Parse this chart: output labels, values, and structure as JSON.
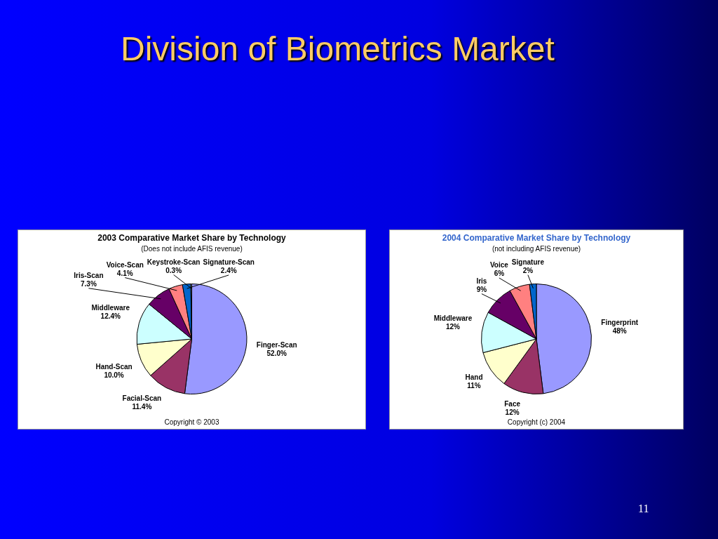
{
  "chart_data": [
    {
      "type": "other",
      "title": "Division of Biometrics Market",
      "annotations": [
        "11"
      ]
    },
    {
      "type": "pie",
      "title": "2003 Comparative Market Share by Technology",
      "subtitle": "(Does not include AFIS revenue)",
      "annotations": [
        "Copyright © 2003"
      ],
      "categories": [
        "Finger-Scan",
        "Facial-Scan",
        "Hand-Scan",
        "Middleware",
        "Iris-Scan",
        "Voice-Scan",
        "Signature-Scan",
        "Keystroke-Scan"
      ],
      "values": [
        52.0,
        11.4,
        10.0,
        12.4,
        7.3,
        4.1,
        2.4,
        0.3
      ],
      "value_labels": [
        "52.0%",
        "11.4%",
        "10.0%",
        "12.4%",
        "7.3%",
        "4.1%",
        "2.4%",
        "0.3%"
      ],
      "colors": [
        "#9999ff",
        "#993366",
        "#ffffcc",
        "#ccffff",
        "#660066",
        "#ff8080",
        "#0066cc",
        "#ccccff"
      ]
    },
    {
      "type": "pie",
      "title": "2004 Comparative Market Share by Technology",
      "subtitle": "(not including AFIS revenue)",
      "annotations": [
        "Copyright (c) 2004"
      ],
      "categories": [
        "Fingerprint",
        "Face",
        "Hand",
        "Middleware",
        "Iris",
        "Voice",
        "Signature"
      ],
      "values": [
        48,
        12,
        11,
        12,
        9,
        6,
        2
      ],
      "value_labels": [
        "48%",
        "12%",
        "11%",
        "12%",
        "9%",
        "6%",
        "2%"
      ],
      "colors": [
        "#9999ff",
        "#993366",
        "#ffffcc",
        "#ccffff",
        "#660066",
        "#ff8080",
        "#0066cc"
      ]
    }
  ]
}
